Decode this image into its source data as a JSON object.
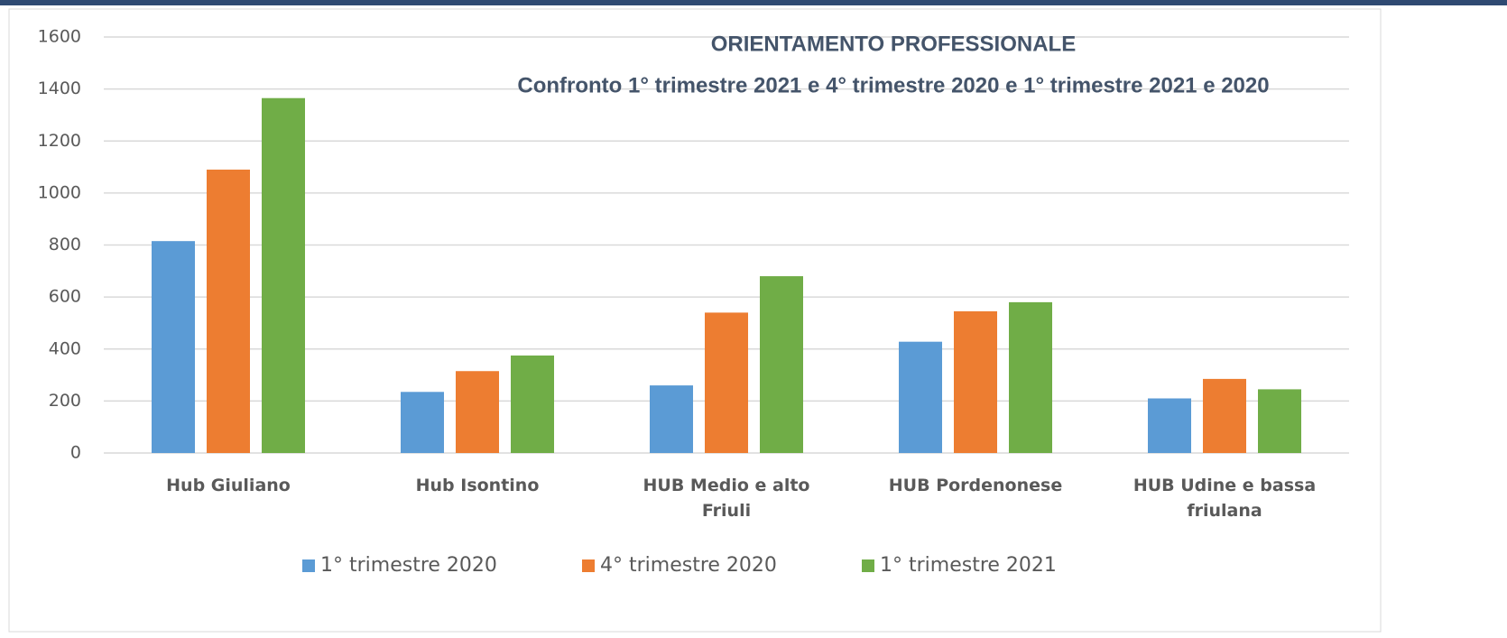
{
  "chart_data": {
    "type": "bar",
    "title": "ORIENTAMENTO PROFESSIONALE",
    "subtitle": "Confronto 1° trimestre 2021 e 4° trimestre 2020 e 1° trimestre 2021 e 2020",
    "categories": [
      "Hub Giuliano",
      "Hub Isontino",
      "HUB Medio e alto Friuli",
      "HUB Pordenonese",
      "HUB Udine e bassa friulana"
    ],
    "series": [
      {
        "name": "1° trimestre 2020",
        "color": "#5b9bd5",
        "values": [
          815,
          235,
          260,
          428,
          210
        ]
      },
      {
        "name": "4° trimestre 2020",
        "color": "#ed7d31",
        "values": [
          1090,
          315,
          540,
          545,
          285
        ]
      },
      {
        "name": "1° trimestre 2021",
        "color": "#70ad47",
        "values": [
          1365,
          375,
          680,
          580,
          245
        ]
      }
    ],
    "ylim": [
      0,
      1600
    ],
    "yticks": [
      0,
      200,
      400,
      600,
      800,
      1000,
      1200,
      1400,
      1600
    ],
    "grid": true,
    "legend": "bottom"
  }
}
